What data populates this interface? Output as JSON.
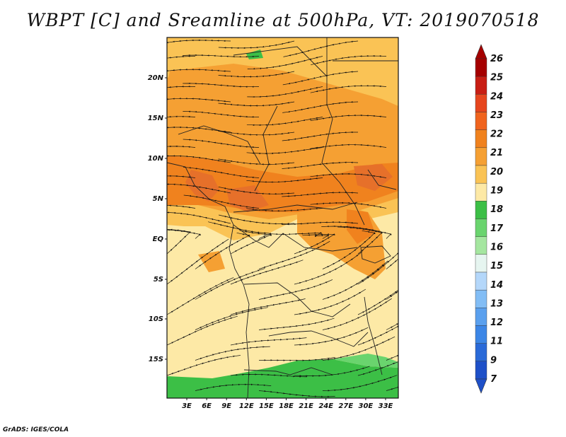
{
  "title": "WBPT [C] and Sreamline at 500hPa, VT: 2019070518",
  "credit": "GrADS: IGES/COLA",
  "map": {
    "variable": "Wet-bulb potential temperature",
    "units": "C",
    "level": "500hPa",
    "valid_time": "2019070518",
    "lat_ticks": [
      "20N",
      "15N",
      "10N",
      "5N",
      "EQ",
      "5S",
      "10S",
      "15S"
    ],
    "lon_ticks": [
      "3E",
      "6E",
      "9E",
      "12E",
      "15E",
      "18E",
      "21E",
      "24E",
      "27E",
      "30E",
      "33E"
    ],
    "regions": [
      {
        "name": "warm band",
        "band": "21-23",
        "color": "#f0821e"
      },
      {
        "name": "north warm area",
        "band": "20-22",
        "color": "#f5a033"
      },
      {
        "name": "southern mild area",
        "band": "19-20",
        "color": "#fde9a6"
      },
      {
        "name": "southern cool strip",
        "band": "17-18",
        "color": "#3cbf46"
      }
    ]
  },
  "colorbar": {
    "labels": [
      "26",
      "25",
      "24",
      "23",
      "22",
      "21",
      "20",
      "19",
      "18",
      "17",
      "16",
      "15",
      "14",
      "13",
      "12",
      "11",
      "9",
      "7"
    ],
    "colors": [
      "#a50000",
      "#c81e14",
      "#e6461e",
      "#f0641e",
      "#f0821e",
      "#f5a033",
      "#fac355",
      "#fde9a6",
      "#3cbf46",
      "#6ad46e",
      "#a5e6a0",
      "#e6f5f0",
      "#b4d7fa",
      "#82bdf5",
      "#5aa0ee",
      "#3c86e6",
      "#2a6ad8",
      "#1e50c8"
    ]
  }
}
